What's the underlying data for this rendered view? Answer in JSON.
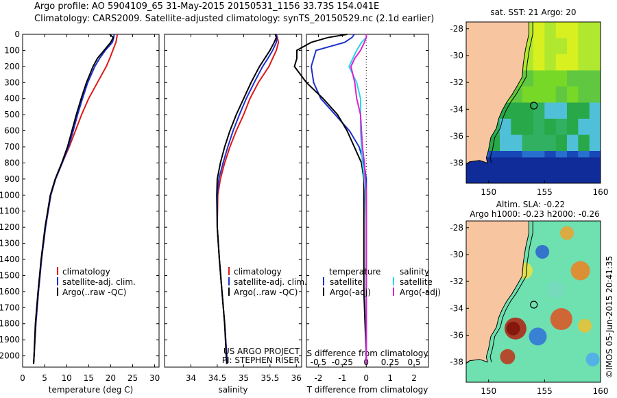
{
  "header": {
    "line1": "Argo profile: AO 5904109_65 31-May-2015 20150531_1156 33.73S 154.041E",
    "line2": "Climatology: CARS2009. Satellite-adjusted climatology: synTS_20150529.nc (2.1d earlier)"
  },
  "colors": {
    "clim": "#e01818",
    "sat": "#1c2fd0",
    "argo": "#000000",
    "cyan": "#22d8e8",
    "magenta": "#e020d0",
    "land": "#f7c6a0"
  },
  "chart_data": [
    {
      "type": "line",
      "id": "temperature",
      "xlabel": "temperature (deg C)",
      "ylabel": "",
      "xlim": [
        0,
        31
      ],
      "ylim": [
        2070,
        0
      ],
      "xticks": [
        0,
        5,
        10,
        15,
        20,
        25,
        30
      ],
      "yticks": [
        0,
        100,
        200,
        300,
        400,
        500,
        600,
        700,
        800,
        900,
        1000,
        1100,
        1200,
        1300,
        1400,
        1500,
        1600,
        1700,
        1800,
        1900,
        2000
      ],
      "depth": [
        0,
        20,
        50,
        100,
        150,
        200,
        300,
        400,
        500,
        600,
        700,
        800,
        900,
        1000,
        1200,
        1400,
        1600,
        1800,
        2000,
        2050
      ],
      "series": [
        {
          "name": "climatology",
          "key": "clim",
          "values": [
            21.5,
            21.4,
            21.2,
            20.5,
            19.8,
            19.0,
            17.0,
            15.0,
            13.4,
            12.0,
            10.6,
            9.0,
            7.5,
            6.4,
            5.2,
            4.3,
            3.6,
            3.0,
            2.6,
            2.5
          ]
        },
        {
          "name": "satellite-adj. clim.",
          "key": "sat",
          "values": [
            20.8,
            20.7,
            20.4,
            18.8,
            17.5,
            16.4,
            14.8,
            13.6,
            12.5,
            11.5,
            10.4,
            9.0,
            7.5,
            6.4,
            5.2,
            4.3,
            3.6,
            3.0,
            2.6,
            2.5
          ]
        },
        {
          "name": "Argo(..raw -QC)",
          "key": "argo",
          "values": [
            19.8,
            20.6,
            20.0,
            18.5,
            17.0,
            16.0,
            14.5,
            13.3,
            12.2,
            11.2,
            10.2,
            8.9,
            7.4,
            6.3,
            5.1,
            4.2,
            3.5,
            2.9,
            2.6,
            2.5
          ]
        }
      ],
      "legend": [
        "climatology",
        "satellite-adj. clim.",
        "Argo(..raw -QC)"
      ]
    },
    {
      "type": "line",
      "id": "salinity",
      "xlabel": "salinity",
      "xlim": [
        33.5,
        36.1
      ],
      "ylim": [
        2070,
        0
      ],
      "xticks": [
        34,
        34.5,
        35,
        35.5,
        36
      ],
      "depth": [
        0,
        20,
        50,
        100,
        150,
        200,
        300,
        400,
        500,
        600,
        700,
        800,
        900,
        1000,
        1200,
        1400,
        1600,
        1800,
        2000,
        2050
      ],
      "series": [
        {
          "name": "climatology",
          "key": "clim",
          "values": [
            35.62,
            35.64,
            35.66,
            35.62,
            35.55,
            35.48,
            35.28,
            35.12,
            35.0,
            34.86,
            34.74,
            34.64,
            34.56,
            34.51,
            34.5,
            34.54,
            34.59,
            34.64,
            34.68,
            34.69
          ]
        },
        {
          "name": "satellite-adj. clim.",
          "key": "sat",
          "values": [
            35.62,
            35.63,
            35.62,
            35.55,
            35.46,
            35.36,
            35.2,
            35.05,
            34.92,
            34.8,
            34.7,
            34.61,
            34.53,
            34.5,
            34.5,
            34.54,
            34.59,
            34.64,
            34.68,
            34.69
          ]
        },
        {
          "name": "Argo(..raw -QC)",
          "key": "argo",
          "values": [
            35.6,
            35.62,
            35.58,
            35.5,
            35.4,
            35.3,
            35.14,
            35.0,
            34.86,
            34.74,
            34.64,
            34.56,
            34.5,
            34.49,
            34.5,
            34.54,
            34.59,
            34.64,
            34.67,
            34.68
          ]
        }
      ],
      "legend": [
        "climatology",
        "satellite-adj. clim.",
        "Argo(..raw -QC)"
      ],
      "note_lines": [
        "US ARGO PROJECT",
        "PI: STEPHEN RISER"
      ]
    },
    {
      "type": "line",
      "id": "difference",
      "xlabel": "T difference from climatology",
      "xlabel_top": "S difference from climatology",
      "xlim": [
        -2.5,
        2.6
      ],
      "ylim": [
        2070,
        0
      ],
      "xticks": [
        -2,
        -1,
        0,
        1,
        2
      ],
      "xtick_labels": [
        "-2",
        "-1",
        "0",
        "1",
        "2"
      ],
      "sticks": [
        "-0.5",
        "-0.25",
        "0",
        "0.25",
        "0.5"
      ],
      "s_scale": 4,
      "depth": [
        0,
        20,
        50,
        100,
        150,
        200,
        300,
        400,
        500,
        600,
        700,
        800,
        900,
        1000,
        1200,
        1400,
        1600,
        1800,
        2000,
        2050
      ],
      "series": [
        {
          "name": "T satellite",
          "key": "sat",
          "values": [
            -0.5,
            -0.6,
            -0.9,
            -2.1,
            -2.2,
            -2.3,
            -2.2,
            -1.9,
            -1.3,
            -0.7,
            -0.3,
            -0.1,
            0,
            0,
            0,
            0,
            0,
            0,
            0,
            0
          ]
        },
        {
          "name": "T Argo(-adj)",
          "key": "argo",
          "values": [
            -0.8,
            -1.6,
            -2.3,
            -2.9,
            -2.9,
            -3.0,
            -2.5,
            -1.8,
            -1.2,
            -0.8,
            -0.5,
            -0.2,
            -0.1,
            -0.1,
            -0.1,
            -0.1,
            -0.1,
            -0.05,
            0,
            0
          ]
        },
        {
          "name": "S satellite",
          "key": "cyan",
          "values": [
            0,
            0,
            -0.05,
            -0.1,
            -0.14,
            -0.18,
            -0.1,
            -0.06,
            -0.06,
            -0.06,
            -0.05,
            -0.04,
            -0.02,
            -0.01,
            0,
            0,
            0,
            0,
            0,
            0
          ]
        },
        {
          "name": "S Argo(-adj)",
          "key": "magenta",
          "values": [
            0,
            0,
            -0.02,
            -0.06,
            -0.12,
            -0.16,
            -0.12,
            -0.1,
            -0.06,
            -0.05,
            -0.04,
            -0.02,
            -0.01,
            0,
            0,
            0,
            0,
            0,
            0,
            0
          ]
        }
      ],
      "legend": {
        "temperature": "temperature",
        "salinity": "salinity",
        "t_sat": "satellite",
        "t_argo": "Argo(-adj)",
        "s_sat": "satellite",
        "s_argo": "Argo(-adj)"
      }
    },
    {
      "type": "heatmap",
      "id": "sst-map",
      "title": "sat. SST: 21  Argo: 20",
      "xlim": [
        148,
        160
      ],
      "ylim": [
        -39.5,
        -27.5
      ],
      "xticks": [
        150,
        155,
        160
      ],
      "yticks": [
        -28,
        -30,
        -32,
        -34,
        -36,
        -38
      ],
      "argo_position": [
        154.041,
        -33.73
      ]
    },
    {
      "type": "heatmap",
      "id": "sla-map",
      "title": "Altim. SLA: -0.22",
      "subtitle": "Argo h1000: -0.23 h2000: -0.26",
      "xlim": [
        148,
        160
      ],
      "ylim": [
        -39.5,
        -27.5
      ],
      "xticks": [
        150,
        155,
        160
      ],
      "yticks": [
        -28,
        -30,
        -32,
        -34,
        -36,
        -38
      ],
      "argo_position": [
        154.041,
        -33.73
      ]
    }
  ],
  "footer": {
    "stamp": "©IMOS 05-Jun-2015 20:41:35"
  }
}
